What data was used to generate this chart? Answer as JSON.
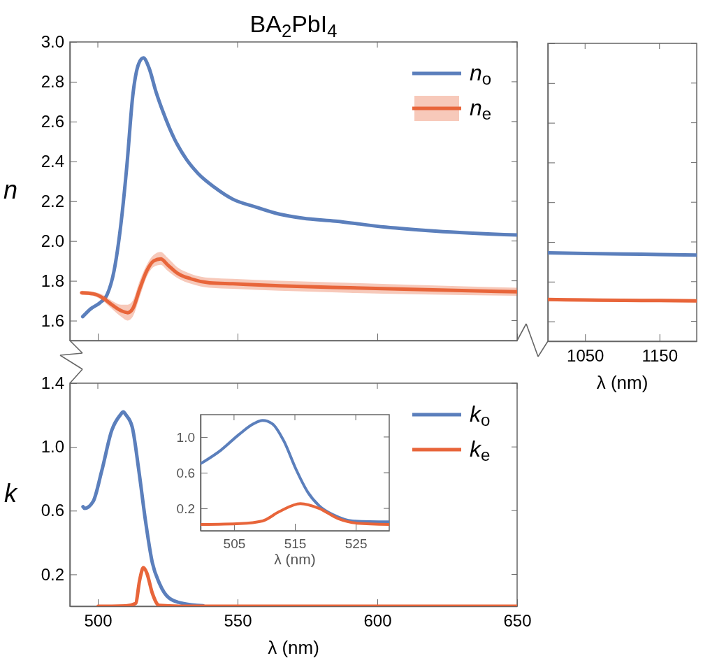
{
  "chart_data": [
    {
      "type": "line",
      "title": "BA$_{2}$PbI$_{4}$",
      "ylabel": "n",
      "xlim": [
        490,
        650
      ],
      "xticks": [
        500,
        550,
        600,
        650
      ],
      "ylim": [
        1.5,
        3.0
      ],
      "yticks": [
        1.6,
        1.8,
        {
          "value": 2,
          "label": "2.0"
        },
        2.2,
        2.4,
        2.6,
        2.8,
        {
          "value": 3,
          "label": "3.0"
        }
      ],
      "tick_labels": "y",
      "legend": "top right",
      "series": [
        {
          "name": "n$_{o}$",
          "color": "#5b7fbc",
          "x": [
            494.6,
            497.5,
            500.8,
            503.3,
            505.8,
            508.3,
            510.4,
            512.5,
            514.6,
            516.3,
            518.3,
            520.8,
            523.3,
            527.5,
            531.7,
            535.8,
            541.7,
            548.3,
            556.7,
            565,
            573.3,
            585,
            602.9,
            620.8,
            650
          ],
          "values": [
            1.62,
            1.66,
            1.69,
            1.73,
            1.85,
            2.09,
            2.38,
            2.73,
            2.89,
            2.92,
            2.87,
            2.75,
            2.65,
            2.51,
            2.41,
            2.34,
            2.27,
            2.21,
            2.17,
            2.135,
            2.115,
            2.1,
            2.07,
            2.05,
            2.03
          ]
        },
        {
          "name": "n$_{e}$",
          "color": "#e8653a",
          "x": [
            494.2,
            498.3,
            501.7,
            505,
            508.3,
            510.7,
            512.5,
            515,
            517.5,
            520,
            522.5,
            525,
            528.3,
            533.3,
            540,
            548.3,
            565,
            590,
            612,
            650
          ],
          "values": [
            1.74,
            1.735,
            1.715,
            1.68,
            1.65,
            1.64,
            1.66,
            1.76,
            1.85,
            1.9,
            1.91,
            1.88,
            1.84,
            1.81,
            1.79,
            1.785,
            1.775,
            1.765,
            1.757,
            1.745
          ],
          "lower": [
            1.73,
            1.725,
            1.7,
            1.66,
            1.62,
            1.6,
            1.62,
            1.72,
            1.82,
            1.87,
            1.88,
            1.85,
            1.815,
            1.785,
            1.765,
            1.76,
            1.75,
            1.74,
            1.733,
            1.725
          ],
          "upper": [
            1.75,
            1.745,
            1.73,
            1.7,
            1.68,
            1.68,
            1.7,
            1.8,
            1.88,
            1.93,
            1.945,
            1.915,
            1.87,
            1.835,
            1.815,
            1.81,
            1.8,
            1.79,
            1.78,
            1.765
          ]
        }
      ]
    },
    {
      "type": "line",
      "xlabel": "λ (nm)",
      "xlim": [
        1000,
        1200
      ],
      "xticks": [
        1050,
        1150
      ],
      "ylim": [
        1.5,
        3.0
      ],
      "yticks": [
        1.6,
        1.8,
        2,
        2.2,
        2.4,
        2.6,
        2.8,
        3
      ],
      "tick_labels": "x",
      "series": [
        {
          "color": "#5b7fbc",
          "x": [
            1000,
            1050,
            1100,
            1150,
            1200
          ],
          "values": [
            1.945,
            1.942,
            1.939,
            1.937,
            1.934
          ]
        },
        {
          "color": "#e8653a",
          "x": [
            1000,
            1050,
            1100,
            1150,
            1200
          ],
          "values": [
            1.71,
            1.708,
            1.706,
            1.705,
            1.703
          ],
          "lower": [
            1.702,
            1.7,
            1.698,
            1.697,
            1.695
          ],
          "upper": [
            1.718,
            1.716,
            1.714,
            1.713,
            1.711
          ]
        }
      ]
    },
    {
      "type": "line",
      "xlabel": "λ (nm)",
      "ylabel": "k",
      "xlim": [
        490,
        650
      ],
      "xticks": [
        500,
        550,
        600,
        650
      ],
      "ylim": [
        0,
        1.4
      ],
      "yticks": [
        0.2,
        0.6,
        {
          "value": 1,
          "label": "1.0"
        },
        1.4
      ],
      "legend": "top right",
      "series": [
        {
          "name": "k$_{o}$",
          "color": "#5b7fbc",
          "x": [
            494.7,
            495.3,
            498.3,
            501.4,
            505,
            508,
            509.1,
            510.1,
            512.3,
            514.7,
            517.1,
            519.5,
            522,
            525.6,
            530.4,
            537.7
          ],
          "values": [
            0.625,
            0.614,
            0.657,
            0.85,
            1.105,
            1.2,
            1.22,
            1.2,
            1.125,
            0.848,
            0.53,
            0.273,
            0.145,
            0.05,
            0.018,
            0.003
          ]
        },
        {
          "name": "k$_{e}$",
          "color": "#e8653a",
          "x": [
            500.1,
            505,
            510,
            513.5,
            515,
            516.3,
            517.5,
            519.5,
            522,
            530,
            650
          ],
          "values": [
            0,
            0,
            0.002,
            0.018,
            0.167,
            0.242,
            0.21,
            0.082,
            0.005,
            0,
            0
          ]
        }
      ]
    },
    {
      "type": "line",
      "xlabel": "λ (nm)",
      "xlim": [
        499.5,
        530.5
      ],
      "xticks": [
        505,
        515,
        525
      ],
      "ylim": [
        -0.05,
        1.25
      ],
      "yticks": [
        0.2,
        0.6,
        {
          "value": 1,
          "label": "1.0"
        }
      ],
      "series": [
        {
          "color": "#5b7fbc",
          "x": [
            499.65,
            502.8,
            505.85,
            508.2,
            509.7,
            511.3,
            513.2,
            515.15,
            517.1,
            519,
            521.4,
            524.45,
            530.5
          ],
          "values": [
            0.707,
            0.85,
            1.03,
            1.148,
            1.186,
            1.148,
            0.953,
            0.643,
            0.384,
            0.229,
            0.125,
            0.06,
            0.049
          ]
        },
        {
          "color": "#e8653a",
          "x": [
            499.65,
            506,
            509.7,
            512.4,
            515.9,
            519,
            522.1,
            525.2,
            530.5
          ],
          "values": [
            0.02,
            0.03,
            0.06,
            0.163,
            0.254,
            0.2,
            0.086,
            0.035,
            0.02
          ]
        }
      ]
    }
  ]
}
